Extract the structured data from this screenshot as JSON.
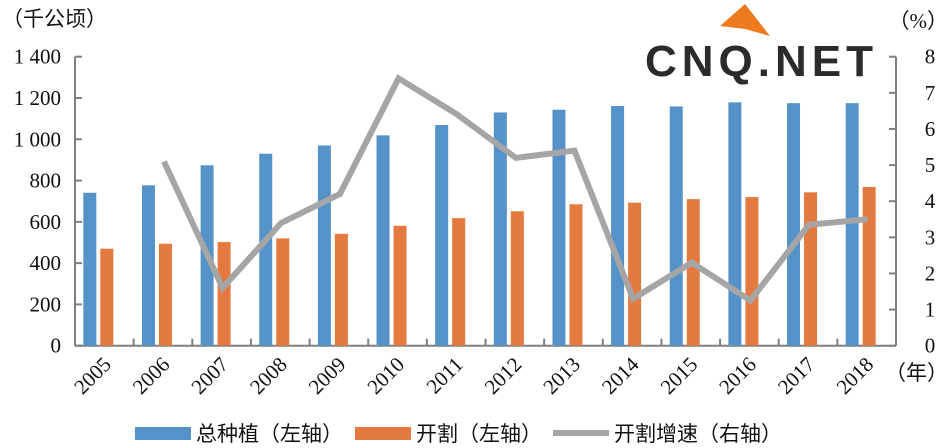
{
  "chart_data": {
    "type": "bar",
    "title": "",
    "categories": [
      "2005",
      "2006",
      "2007",
      "2008",
      "2009",
      "2010",
      "2011",
      "2012",
      "2013",
      "2014",
      "2015",
      "2016",
      "2017",
      "2018"
    ],
    "series": [
      {
        "name": "总种植（左轴）",
        "axis": "left",
        "type": "bar",
        "color": "#5592c8",
        "values": [
          741,
          777,
          874,
          930,
          970,
          1019,
          1069,
          1130,
          1143,
          1161,
          1159,
          1179,
          1175,
          1175
        ]
      },
      {
        "name": "开割（左轴）",
        "axis": "left",
        "type": "bar",
        "color": "#e57a40",
        "values": [
          470,
          494,
          502,
          520,
          542,
          581,
          618,
          651,
          685,
          693,
          710,
          720,
          743,
          769
        ]
      },
      {
        "name": "开割增速（右轴）",
        "axis": "right",
        "type": "line",
        "color": "#a5a5a5",
        "values": [
          null,
          5.1,
          1.6,
          3.4,
          4.2,
          7.4,
          6.4,
          5.2,
          5.4,
          1.3,
          2.3,
          1.25,
          3.35,
          3.5
        ]
      }
    ],
    "left_axis": {
      "label": "（千公顷）",
      "ylim": [
        0,
        1400
      ],
      "ticks": [
        "0",
        "200",
        "400",
        "600",
        "800",
        "1 000",
        "1 200",
        "1 400"
      ]
    },
    "right_axis": {
      "label": "（%）",
      "ylim": [
        0,
        8
      ],
      "ticks": [
        "0",
        "1",
        "2",
        "3",
        "4",
        "5",
        "6",
        "7",
        "8"
      ]
    },
    "xlabel": "（年）",
    "legend_position": "bottom",
    "grid": false
  },
  "watermark": {
    "text": "CNQ.NET"
  }
}
